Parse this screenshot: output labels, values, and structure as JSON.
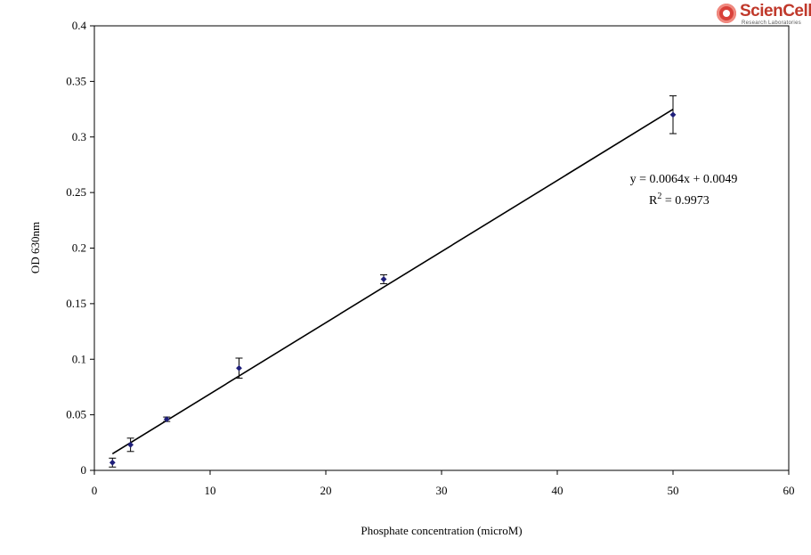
{
  "logo": {
    "name": "ScienCell",
    "tagline": "Research Laboratories"
  },
  "chart_data": {
    "type": "scatter",
    "title": "",
    "xlabel": "Phosphate concentration (microM)",
    "ylabel": "OD 630nm",
    "xlim": [
      0,
      60
    ],
    "ylim": [
      0,
      0.4
    ],
    "x_ticks": [
      "0",
      "10",
      "20",
      "30",
      "40",
      "50",
      "60"
    ],
    "y_ticks": [
      "0",
      "0.05",
      "0.1",
      "0.15",
      "0.2",
      "0.25",
      "0.3",
      "0.35",
      "0.4"
    ],
    "grid": false,
    "legend": "none",
    "series": [
      {
        "x": [
          1.5625,
          3.125,
          6.25,
          12.5,
          25,
          50
        ],
        "y": [
          0.007,
          0.023,
          0.046,
          0.092,
          0.172,
          0.32
        ],
        "error": [
          0.004,
          0.006,
          0.002,
          0.009,
          0.004,
          0.017
        ],
        "color": "#1f1f7a"
      }
    ],
    "trendline": {
      "slope": 0.0064,
      "intercept": 0.0049,
      "x_range": [
        1.5625,
        50
      ]
    },
    "annotations": {
      "equation": "y = 0.0064x + 0.0049",
      "r2_label": "R",
      "r2_sup": "2",
      "r2_value": " = 0.9973"
    }
  }
}
